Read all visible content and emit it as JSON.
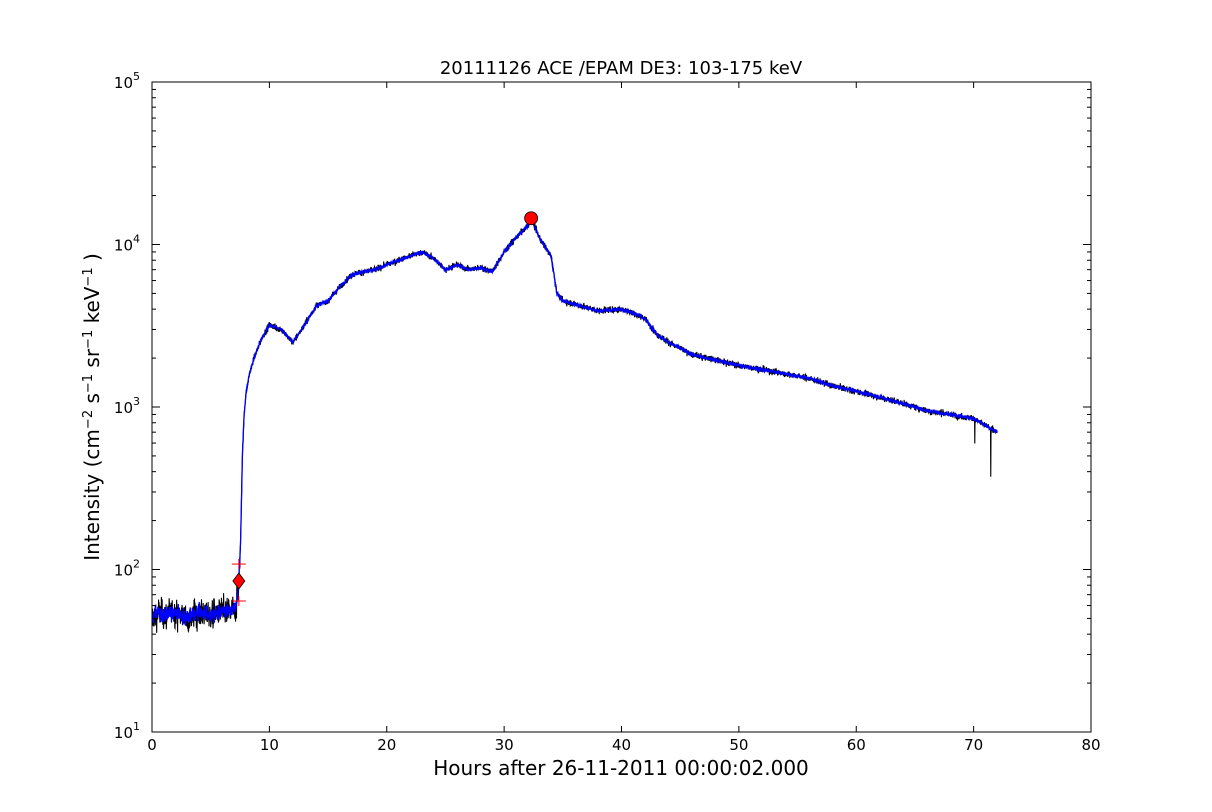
{
  "chart_data": {
    "type": "line",
    "title": "20111126 ACE /EPAM DE3: 103-175 keV",
    "xlabel": "Hours after 26-11-2011 00:00:02.000",
    "ylabel": {
      "text": "Intensity (cm",
      "sup1": "−2",
      "mid1": " s",
      "sup2": "−1",
      "mid2": " sr",
      "sup3": "−1",
      "mid3": " keV",
      "sup4": "−1",
      "end": " )"
    },
    "xlim": [
      0,
      80
    ],
    "ylim": [
      10,
      100000
    ],
    "yscale": "log",
    "grid": false,
    "x_ticks": [
      0,
      10,
      20,
      30,
      40,
      50,
      60,
      70,
      80
    ],
    "x_tick_labels": [
      "0",
      "10",
      "20",
      "30",
      "40",
      "50",
      "60",
      "70",
      "80"
    ],
    "y_ticks": [
      10,
      100,
      1000,
      10000,
      100000
    ],
    "y_tick_labels": [
      {
        "base": "10",
        "exp": "1"
      },
      {
        "base": "10",
        "exp": "2"
      },
      {
        "base": "10",
        "exp": "3"
      },
      {
        "base": "10",
        "exp": "4"
      },
      {
        "base": "10",
        "exp": "5"
      }
    ],
    "series_profile": {
      "x": [
        0,
        0.5,
        1,
        2,
        3,
        4,
        5,
        6,
        6.8,
        7.2,
        7.4,
        7.55,
        7.7,
        7.85,
        8.0,
        8.3,
        8.7,
        9.3,
        10,
        11,
        12,
        13,
        14,
        15,
        16,
        17,
        18,
        19,
        20,
        21,
        22,
        23,
        24,
        25,
        26,
        27,
        28,
        29,
        30,
        31,
        32,
        32.3,
        33,
        34,
        34.5,
        35,
        36,
        38,
        40,
        41,
        42,
        43,
        44,
        45,
        46,
        48,
        50,
        52,
        54,
        56,
        58,
        60,
        62,
        64,
        66,
        68,
        70,
        71,
        72
      ],
      "y": [
        50,
        55,
        52,
        55,
        50,
        55,
        52,
        55,
        55,
        60,
        85,
        150,
        500,
        900,
        1200,
        1600,
        2000,
        2600,
        3200,
        3000,
        2500,
        3200,
        4200,
        4500,
        5500,
        6500,
        6800,
        7000,
        7500,
        8000,
        8500,
        9000,
        8200,
        7000,
        7500,
        7000,
        7200,
        6800,
        9000,
        11000,
        13000,
        14500,
        11000,
        8500,
        5000,
        4500,
        4300,
        3900,
        4000,
        3800,
        3500,
        2800,
        2500,
        2300,
        2100,
        1950,
        1800,
        1700,
        1600,
        1500,
        1350,
        1250,
        1150,
        1050,
        950,
        900,
        850,
        770,
        700
      ]
    },
    "markers": [
      {
        "name": "onset",
        "shape": "diamond",
        "x": 7.4,
        "y": 85,
        "color": "#ff0000"
      },
      {
        "name": "onset-upper",
        "shape": "plus",
        "x": 7.4,
        "y": 108,
        "color": "#ff0000"
      },
      {
        "name": "onset-lower",
        "shape": "plus",
        "x": 7.4,
        "y": 64,
        "color": "#ff0000"
      },
      {
        "name": "peak",
        "shape": "circle",
        "x": 32.3,
        "y": 14500,
        "color": "#ff0000"
      }
    ],
    "colors": {
      "raw": "#000000",
      "smoothed": "#0000ff",
      "marker": "#ff0000"
    }
  }
}
